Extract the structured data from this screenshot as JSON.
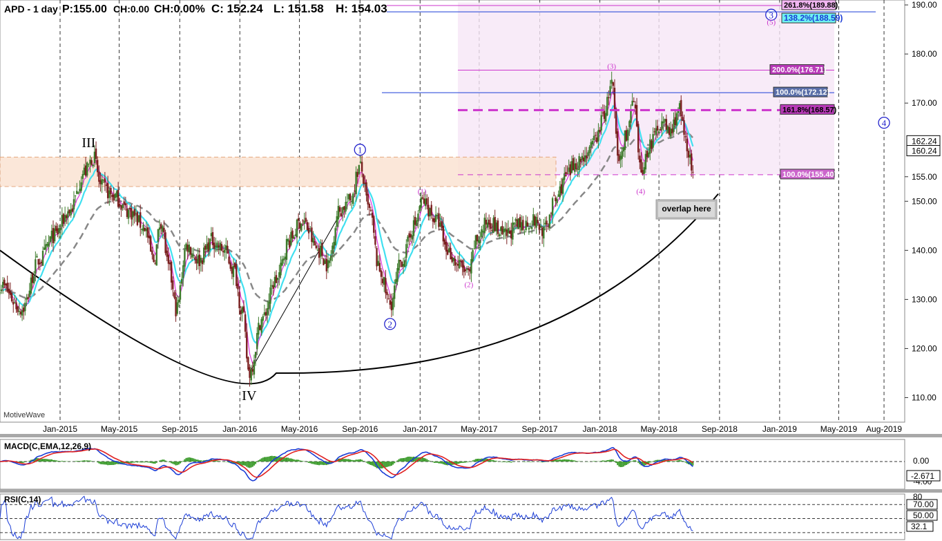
{
  "header": {
    "symbol": "APD - 1 day",
    "price": "P:155.00",
    "change": "CH:0.00",
    "change_pct": "CH:0.00%",
    "close": "C: 152.24",
    "low": "L: 151.58",
    "high": "H: 154.03"
  },
  "watermark": "MotiveWave",
  "colors": {
    "bull_candle": "#3c7a2a",
    "bear_candle": "#7a1f1f",
    "ma_fast": "#e040e0",
    "ma_mid": "#40e0f0",
    "ma_slow": "#888888",
    "wave_blue": "#2222cc",
    "wave_magenta": "#cc33cc",
    "macd_line": "#1a3cd6",
    "macd_signal": "#e02020",
    "macd_hist": "#3a9a2a",
    "rsi_line": "#1a3cd6"
  },
  "chart_data": {
    "type": "candlestick",
    "x_axis": {
      "labels": [
        "Jan-2015",
        "May-2015",
        "Sep-2015",
        "Jan-2016",
        "May-2016",
        "Sep-2016",
        "Jan-2017",
        "May-2017",
        "Sep-2017",
        "Jan-2018",
        "May-2018",
        "Sep-2018",
        "Jan-2019",
        "May-2019",
        "Aug-2019"
      ],
      "dates": [
        "2015-01-01",
        "2015-05-01",
        "2015-09-01",
        "2016-01-01",
        "2016-05-01",
        "2016-09-01",
        "2017-01-01",
        "2017-05-01",
        "2017-09-01",
        "2018-01-01",
        "2018-05-01",
        "2018-09-01",
        "2019-01-01",
        "2019-05-01",
        "2019-08-01"
      ]
    },
    "y_axis": {
      "ticks": [
        "110.00",
        "120.00",
        "130.00",
        "140.00",
        "150.00",
        "155.00",
        "170.00",
        "180.00",
        "190.00"
      ],
      "range": [
        105,
        191
      ]
    },
    "price_labels": [
      "162.24",
      "160.24"
    ],
    "price_path": [
      [
        "2014-09-01",
        133
      ],
      [
        "2014-10-15",
        128
      ],
      [
        "2014-11-20",
        138
      ],
      [
        "2014-12-20",
        143
      ],
      [
        "2015-01-20",
        148
      ],
      [
        "2015-02-20",
        156
      ],
      [
        "2015-03-10",
        159
      ],
      [
        "2015-03-25",
        153
      ],
      [
        "2015-04-20",
        151
      ],
      [
        "2015-05-20",
        148
      ],
      [
        "2015-06-20",
        145
      ],
      [
        "2015-07-10",
        138
      ],
      [
        "2015-07-25",
        146
      ],
      [
        "2015-08-10",
        136
      ],
      [
        "2015-08-25",
        128
      ],
      [
        "2015-09-15",
        141
      ],
      [
        "2015-10-10",
        138
      ],
      [
        "2015-11-05",
        142
      ],
      [
        "2015-11-30",
        140
      ],
      [
        "2015-12-20",
        136
      ],
      [
        "2016-01-05",
        128
      ],
      [
        "2016-01-20",
        115
      ],
      [
        "2016-02-15",
        126
      ],
      [
        "2016-03-15",
        134
      ],
      [
        "2016-04-10",
        142
      ],
      [
        "2016-05-05",
        146
      ],
      [
        "2016-06-10",
        140
      ],
      [
        "2016-06-28",
        137
      ],
      [
        "2016-07-20",
        148
      ],
      [
        "2016-08-10",
        150
      ],
      [
        "2016-09-01",
        157
      ],
      [
        "2016-09-20",
        148
      ],
      [
        "2016-10-10",
        136
      ],
      [
        "2016-11-01",
        129
      ],
      [
        "2016-11-25",
        138
      ],
      [
        "2016-12-20",
        145
      ],
      [
        "2017-01-05",
        150
      ],
      [
        "2017-02-05",
        146
      ],
      [
        "2017-02-25",
        140
      ],
      [
        "2017-03-20",
        137
      ],
      [
        "2017-04-10",
        135
      ],
      [
        "2017-04-25",
        142
      ],
      [
        "2017-05-20",
        146
      ],
      [
        "2017-06-20",
        143
      ],
      [
        "2017-07-20",
        145
      ],
      [
        "2017-08-20",
        146
      ],
      [
        "2017-09-10",
        144
      ],
      [
        "2017-10-01",
        150
      ],
      [
        "2017-10-25",
        155
      ],
      [
        "2017-11-15",
        158
      ],
      [
        "2017-12-10",
        160
      ],
      [
        "2017-12-25",
        163
      ],
      [
        "2018-01-10",
        168
      ],
      [
        "2018-01-25",
        174
      ],
      [
        "2018-02-08",
        158
      ],
      [
        "2018-02-25",
        164
      ],
      [
        "2018-03-10",
        170
      ],
      [
        "2018-03-25",
        156
      ],
      [
        "2018-04-15",
        162
      ],
      [
        "2018-05-05",
        166
      ],
      [
        "2018-05-25",
        164
      ],
      [
        "2018-06-10",
        169
      ],
      [
        "2018-06-25",
        162
      ],
      [
        "2018-07-10",
        155
      ]
    ],
    "wave_labels": [
      {
        "text": "III",
        "date": "2015-02-28",
        "price": 161
      },
      {
        "text": "IV",
        "date": "2016-01-20",
        "price": 109.5
      },
      {
        "text": "1",
        "date": "2016-09-01",
        "price": 160.5
      },
      {
        "text": "2",
        "date": "2016-11-01",
        "price": 125
      },
      {
        "text": "(1)",
        "date": "2017-01-05",
        "price": 151.5
      },
      {
        "text": "(2)",
        "date": "2017-04-10",
        "price": 132.5
      },
      {
        "text": "(3)",
        "date": "2018-01-25",
        "price": 177
      },
      {
        "text": "(4)",
        "date": "2018-03-25",
        "price": 151.5
      },
      {
        "text": "3",
        "date": "2018-12-15",
        "price": 188
      },
      {
        "text": "(5)",
        "date": "2018-12-15",
        "price": 186
      },
      {
        "text": "4",
        "date": "2019-08-01",
        "price": 166
      }
    ],
    "fib_levels": [
      {
        "label": "261.8%(189.88)",
        "price": 189.88
      },
      {
        "label": "138.2%(188.59)",
        "price": 188.59
      },
      {
        "label": "200.0%(176.71)",
        "price": 176.71
      },
      {
        "label": "100.0%(172.12)",
        "price": 172.12
      },
      {
        "label": "161.8%(168.57)",
        "price": 168.57
      },
      {
        "label": "100.0%(155.40)",
        "price": 155.4
      }
    ],
    "annotation": "overlap here",
    "macd": {
      "title": "MACD(C,EMA,12,26,9)",
      "ticks": [
        "0.00",
        "-4.00"
      ],
      "value_label": "-2.671"
    },
    "rsi": {
      "title": "RSI(C,14)",
      "ticks": [
        "80",
        "70.00",
        "50.00",
        "32.1"
      ]
    }
  }
}
